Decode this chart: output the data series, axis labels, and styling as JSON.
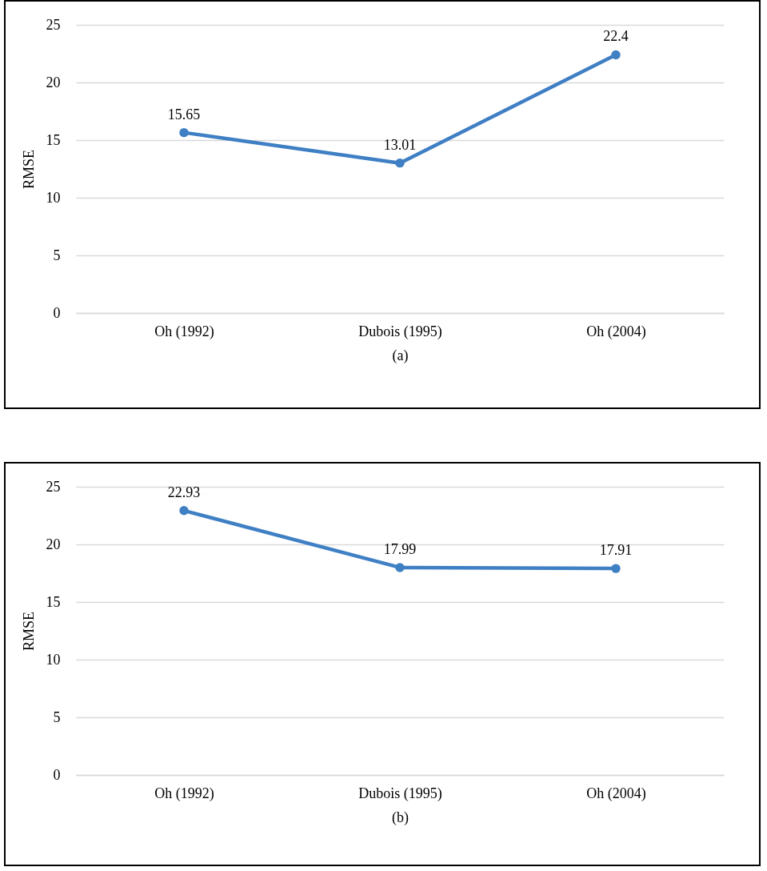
{
  "chart_data": [
    {
      "type": "line",
      "categories": [
        "Oh (1992)",
        "Dubois (1995)",
        "Oh (2004)"
      ],
      "series": [
        {
          "color": "#3f7fc4",
          "values": [
            15.65,
            13.01,
            22.4
          ]
        }
      ],
      "ylabel": "RMSE",
      "xlabel": "(a)",
      "ylim": [
        0,
        25
      ],
      "yticks": [
        0,
        5,
        10,
        15,
        20,
        25
      ],
      "grid": "y",
      "marker": "circle",
      "data_labels": true,
      "legend": false
    },
    {
      "type": "line",
      "categories": [
        "Oh (1992)",
        "Dubois (1995)",
        "Oh (2004)"
      ],
      "series": [
        {
          "color": "#3f7fc4",
          "values": [
            22.93,
            17.99,
            17.91
          ]
        }
      ],
      "ylabel": "RMSE",
      "xlabel": "(b)",
      "ylim": [
        0,
        25
      ],
      "yticks": [
        0,
        5,
        10,
        15,
        20,
        25
      ],
      "grid": "y",
      "marker": "circle",
      "data_labels": true,
      "legend": false
    }
  ]
}
